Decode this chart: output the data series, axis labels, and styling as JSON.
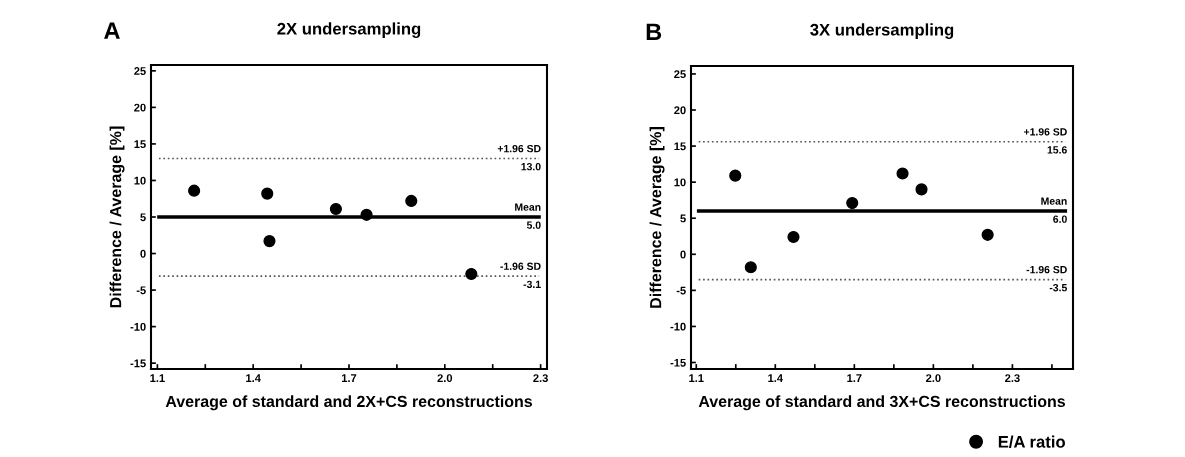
{
  "chart_data": [
    {
      "type": "scatter",
      "title": "2X undersampling",
      "xlabel": "Average of standard and 2X+CS reconstructions",
      "ylabel": "Difference / Average [%]",
      "annotations": [
        "A",
        "13.0",
        "5.0",
        "-3.1"
      ],
      "series": [
        {
          "color": "#000000",
          "x": [
            1.215,
            1.444,
            1.451,
            1.659,
            1.755,
            1.895,
            2.083
          ],
          "values": [
            8.6,
            8.2,
            1.7,
            6.1,
            5.3,
            7.2,
            -2.8
          ]
        }
      ],
      "xlim": [
        1.08,
        2.32
      ],
      "ylim": [
        -15.8,
        25.8
      ],
      "xticks": [
        1.1,
        {
          "value": 1.25,
          "label": null
        },
        1.4,
        {
          "value": 1.55,
          "label": null
        },
        1.7,
        {
          "value": 1.85,
          "label": null
        },
        {
          "value": 2,
          "label": "2.0"
        },
        {
          "value": 2.15,
          "label": null
        },
        2.3
      ],
      "yticks": [
        -15,
        -10,
        -5,
        0,
        5,
        10,
        15,
        20,
        25
      ],
      "ref_lines": [
        {
          "axis": "y",
          "value": 13.0,
          "label": "+1.96 SD",
          "color": "#555555",
          "line_style": "dotted"
        },
        {
          "axis": "y",
          "value": 5.0,
          "label": "Mean",
          "color": "#000000",
          "line_style": "solid"
        },
        {
          "axis": "y",
          "value": -3.1,
          "label": "-1.96 SD",
          "color": "#555555",
          "line_style": "dotted"
        }
      ],
      "marker": "circle",
      "grid": false
    },
    {
      "type": "scatter",
      "title": "3X undersampling",
      "xlabel": "Average of standard and 3X+CS reconstructions",
      "ylabel": "Difference / Average [%]",
      "annotations": [
        "B",
        "15.6",
        "6.0",
        "-3.5"
      ],
      "series": [
        {
          "name": "E/A ratio",
          "color": "#000000",
          "x": [
            1.248,
            1.307,
            1.469,
            1.692,
            1.883,
            1.955,
            2.206
          ],
          "values": [
            10.9,
            -1.8,
            2.4,
            7.1,
            11.2,
            9.0,
            2.7
          ]
        }
      ],
      "xlim": [
        1.08,
        2.53
      ],
      "ylim": [
        -15.9,
        26.1
      ],
      "xticks": [
        1.1,
        {
          "value": 1.25,
          "label": null
        },
        1.4,
        {
          "value": 1.55,
          "label": null
        },
        1.7,
        {
          "value": 1.85,
          "label": null
        },
        {
          "value": 2,
          "label": "2.0"
        },
        {
          "value": 2.15,
          "label": null
        },
        2.3,
        {
          "value": 2.45,
          "label": null
        }
      ],
      "yticks": [
        -15,
        -10,
        -5,
        0,
        5,
        10,
        15,
        20,
        25
      ],
      "ref_lines": [
        {
          "axis": "y",
          "value": 15.6,
          "label": "+1.96 SD",
          "color": "#555555",
          "line_style": "dotted"
        },
        {
          "axis": "y",
          "value": 6.0,
          "label": "Mean",
          "color": "#000000",
          "line_style": "solid"
        },
        {
          "axis": "y",
          "value": -3.5,
          "label": "-1.96 SD",
          "color": "#555555",
          "line_style": "dotted"
        }
      ],
      "marker": "circle",
      "grid": false,
      "legend": "bottom right"
    }
  ]
}
